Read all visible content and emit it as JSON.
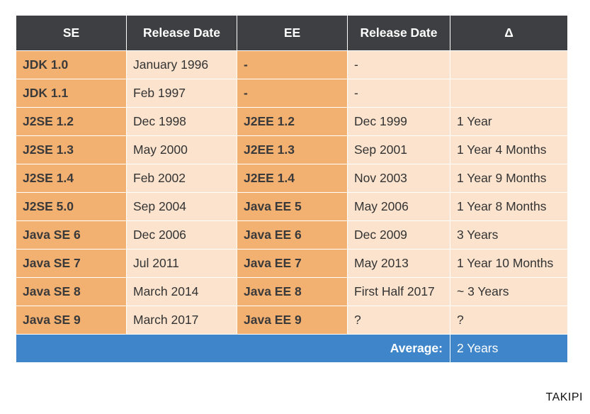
{
  "table": {
    "headers": [
      "SE",
      "Release Date",
      "EE",
      "Release Date",
      "Δ"
    ],
    "rows": [
      {
        "se": "JDK 1.0",
        "se_date": "January 1996",
        "ee": "-",
        "ee_date": "-",
        "delta": ""
      },
      {
        "se": "JDK 1.1",
        "se_date": "Feb 1997",
        "ee": "-",
        "ee_date": "-",
        "delta": ""
      },
      {
        "se": "J2SE 1.2",
        "se_date": "Dec 1998",
        "ee": "J2EE 1.2",
        "ee_date": "Dec 1999",
        "delta": "1 Year"
      },
      {
        "se": "J2SE 1.3",
        "se_date": "May 2000",
        "ee": "J2EE 1.3",
        "ee_date": "Sep 2001",
        "delta": "1 Year 4 Months"
      },
      {
        "se": "J2SE 1.4",
        "se_date": "Feb 2002",
        "ee": "J2EE 1.4",
        "ee_date": "Nov 2003",
        "delta": "1 Year 9 Months"
      },
      {
        "se": "J2SE 5.0",
        "se_date": "Sep 2004",
        "ee": "Java EE 5",
        "ee_date": "May 2006",
        "delta": "1 Year 8 Months"
      },
      {
        "se": "Java SE 6",
        "se_date": "Dec 2006",
        "ee": "Java EE 6",
        "ee_date": "Dec 2009",
        "delta": "3 Years"
      },
      {
        "se": "Java SE 7",
        "se_date": "Jul 2011",
        "ee": "Java EE 7",
        "ee_date": "May 2013",
        "delta": "1 Year 10 Months"
      },
      {
        "se": "Java SE 8",
        "se_date": "March 2014",
        "ee": "Java EE 8",
        "ee_date": "First Half 2017",
        "delta": "~ 3 Years"
      },
      {
        "se": "Java SE 9",
        "se_date": "March 2017",
        "ee": "Java EE 9",
        "ee_date": "?",
        "delta": "?"
      }
    ],
    "average_label": "Average:",
    "average_value": "2 Years"
  },
  "brand": "TAKIPI",
  "colors": {
    "header_bg": "#3d3f42",
    "dark_orange": "#f2b071",
    "light_orange": "#fbe3cd",
    "average_bg": "#3e85c9"
  }
}
